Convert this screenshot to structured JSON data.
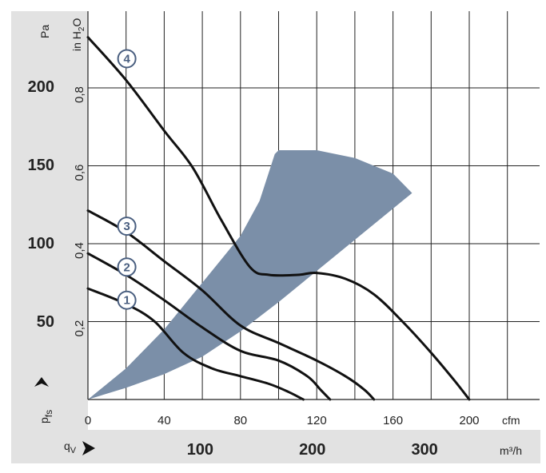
{
  "chart_data": {
    "type": "line",
    "grid": true,
    "xlim_cfm": [
      0,
      236
    ],
    "ylim_inh2o": [
      0,
      0.99
    ],
    "primary_x_axis": {
      "unit_label": "cfm",
      "ticks": [
        {
          "value": 0,
          "label": "0"
        },
        {
          "value": 40,
          "label": "40"
        },
        {
          "value": 80,
          "label": "80"
        },
        {
          "value": 120,
          "label": "120"
        },
        {
          "value": 160,
          "label": "160"
        },
        {
          "value": 200,
          "label": "200"
        }
      ]
    },
    "secondary_x_axis": {
      "label_main": "q",
      "label_sub": "V",
      "unit_label": "m³/h",
      "ticks": [
        {
          "value": 100,
          "label": "100"
        },
        {
          "value": 200,
          "label": "200"
        },
        {
          "value": 300,
          "label": "300"
        }
      ]
    },
    "primary_y_axis": {
      "unit_label": "in H",
      "unit_sub": "2",
      "unit_tail": "O",
      "ticks": [
        {
          "value": 0.2,
          "label": "0,2"
        },
        {
          "value": 0.4,
          "label": "0,4"
        },
        {
          "value": 0.6,
          "label": "0,6"
        },
        {
          "value": 0.8,
          "label": "0,8"
        }
      ]
    },
    "secondary_y_axis": {
      "unit_label": "Pa",
      "label_main": "p",
      "label_sub": "fs",
      "ticks": [
        {
          "value": 50,
          "label": "50"
        },
        {
          "value": 100,
          "label": "100"
        },
        {
          "value": 150,
          "label": "150"
        },
        {
          "value": 200,
          "label": "200"
        }
      ]
    },
    "operating_region_color": "#7b8fa8",
    "curve_color": "#111111",
    "label_color": "#4a5f80",
    "operating_region": [
      [
        0,
        0
      ],
      [
        20,
        0.03
      ],
      [
        40,
        0.065
      ],
      [
        60,
        0.11
      ],
      [
        80,
        0.175
      ],
      [
        100,
        0.25
      ],
      [
        120,
        0.33
      ],
      [
        140,
        0.41
      ],
      [
        160,
        0.49
      ],
      [
        170,
        0.53
      ],
      [
        160,
        0.58
      ],
      [
        140,
        0.62
      ],
      [
        120,
        0.64
      ],
      [
        100,
        0.64
      ],
      [
        98,
        0.63
      ],
      [
        90,
        0.51
      ],
      [
        80,
        0.42
      ],
      [
        60,
        0.3
      ],
      [
        40,
        0.18
      ],
      [
        20,
        0.08
      ],
      [
        0,
        0
      ]
    ],
    "series": [
      {
        "label": "1",
        "label_at": [
          12,
          0.255
        ],
        "points": [
          [
            0,
            0.285
          ],
          [
            20,
            0.245
          ],
          [
            35,
            0.2
          ],
          [
            50,
            0.12
          ],
          [
            65,
            0.08
          ],
          [
            80,
            0.06
          ],
          [
            95,
            0.04
          ],
          [
            105,
            0.02
          ],
          [
            113,
            0.0
          ]
        ]
      },
      {
        "label": "2",
        "label_at": [
          12,
          0.34
        ],
        "points": [
          [
            0,
            0.375
          ],
          [
            20,
            0.32
          ],
          [
            40,
            0.255
          ],
          [
            60,
            0.185
          ],
          [
            80,
            0.125
          ],
          [
            100,
            0.1
          ],
          [
            115,
            0.06
          ],
          [
            122,
            0.025
          ],
          [
            127,
            0.0
          ]
        ]
      },
      {
        "label": "3",
        "label_at": [
          12,
          0.445
        ],
        "points": [
          [
            0,
            0.485
          ],
          [
            20,
            0.43
          ],
          [
            40,
            0.355
          ],
          [
            60,
            0.28
          ],
          [
            80,
            0.19
          ],
          [
            100,
            0.145
          ],
          [
            120,
            0.1
          ],
          [
            135,
            0.06
          ],
          [
            145,
            0.025
          ],
          [
            150,
            0.0
          ]
        ]
      },
      {
        "label": "4",
        "label_at": [
          12,
          0.875
        ],
        "points": [
          [
            0,
            0.93
          ],
          [
            20,
            0.82
          ],
          [
            40,
            0.69
          ],
          [
            55,
            0.595
          ],
          [
            70,
            0.46
          ],
          [
            85,
            0.34
          ],
          [
            95,
            0.32
          ],
          [
            110,
            0.32
          ],
          [
            120,
            0.325
          ],
          [
            135,
            0.31
          ],
          [
            150,
            0.27
          ],
          [
            165,
            0.2
          ],
          [
            180,
            0.12
          ],
          [
            192,
            0.05
          ],
          [
            200,
            0.0
          ]
        ]
      }
    ]
  }
}
